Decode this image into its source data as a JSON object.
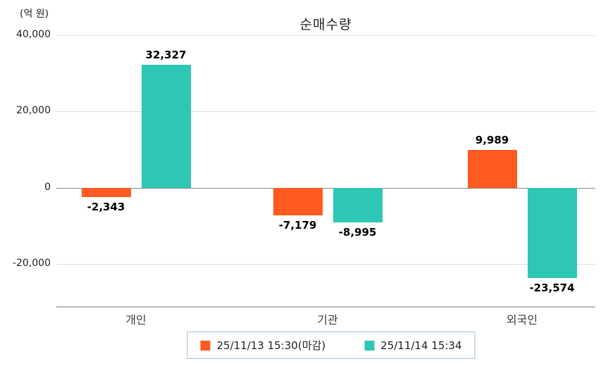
{
  "chart_data": {
    "type": "bar",
    "title": "순매수량",
    "ylabel": "(억 원)",
    "categories": [
      "개인",
      "기관",
      "외국인"
    ],
    "series": [
      {
        "name": "25/11/13 15:30(마감)",
        "color": "#ff5a1f",
        "values": [
          -2343,
          -7179,
          9989
        ]
      },
      {
        "name": "25/11/14 15:34",
        "color": "#2ec7b5",
        "values": [
          32327,
          -8995,
          -23574
        ]
      }
    ],
    "value_labels": [
      [
        "-2,343",
        "-7,179",
        "9,989"
      ],
      [
        "32,327",
        "-8,995",
        "-23,574"
      ]
    ],
    "ylim": [
      -31000,
      40000
    ],
    "yticks": [
      40000,
      20000,
      0,
      -20000
    ],
    "ytick_labels": [
      "40,000",
      "20,000",
      "0",
      "-20,000"
    ],
    "grid": true,
    "legend_position": "bottom"
  }
}
